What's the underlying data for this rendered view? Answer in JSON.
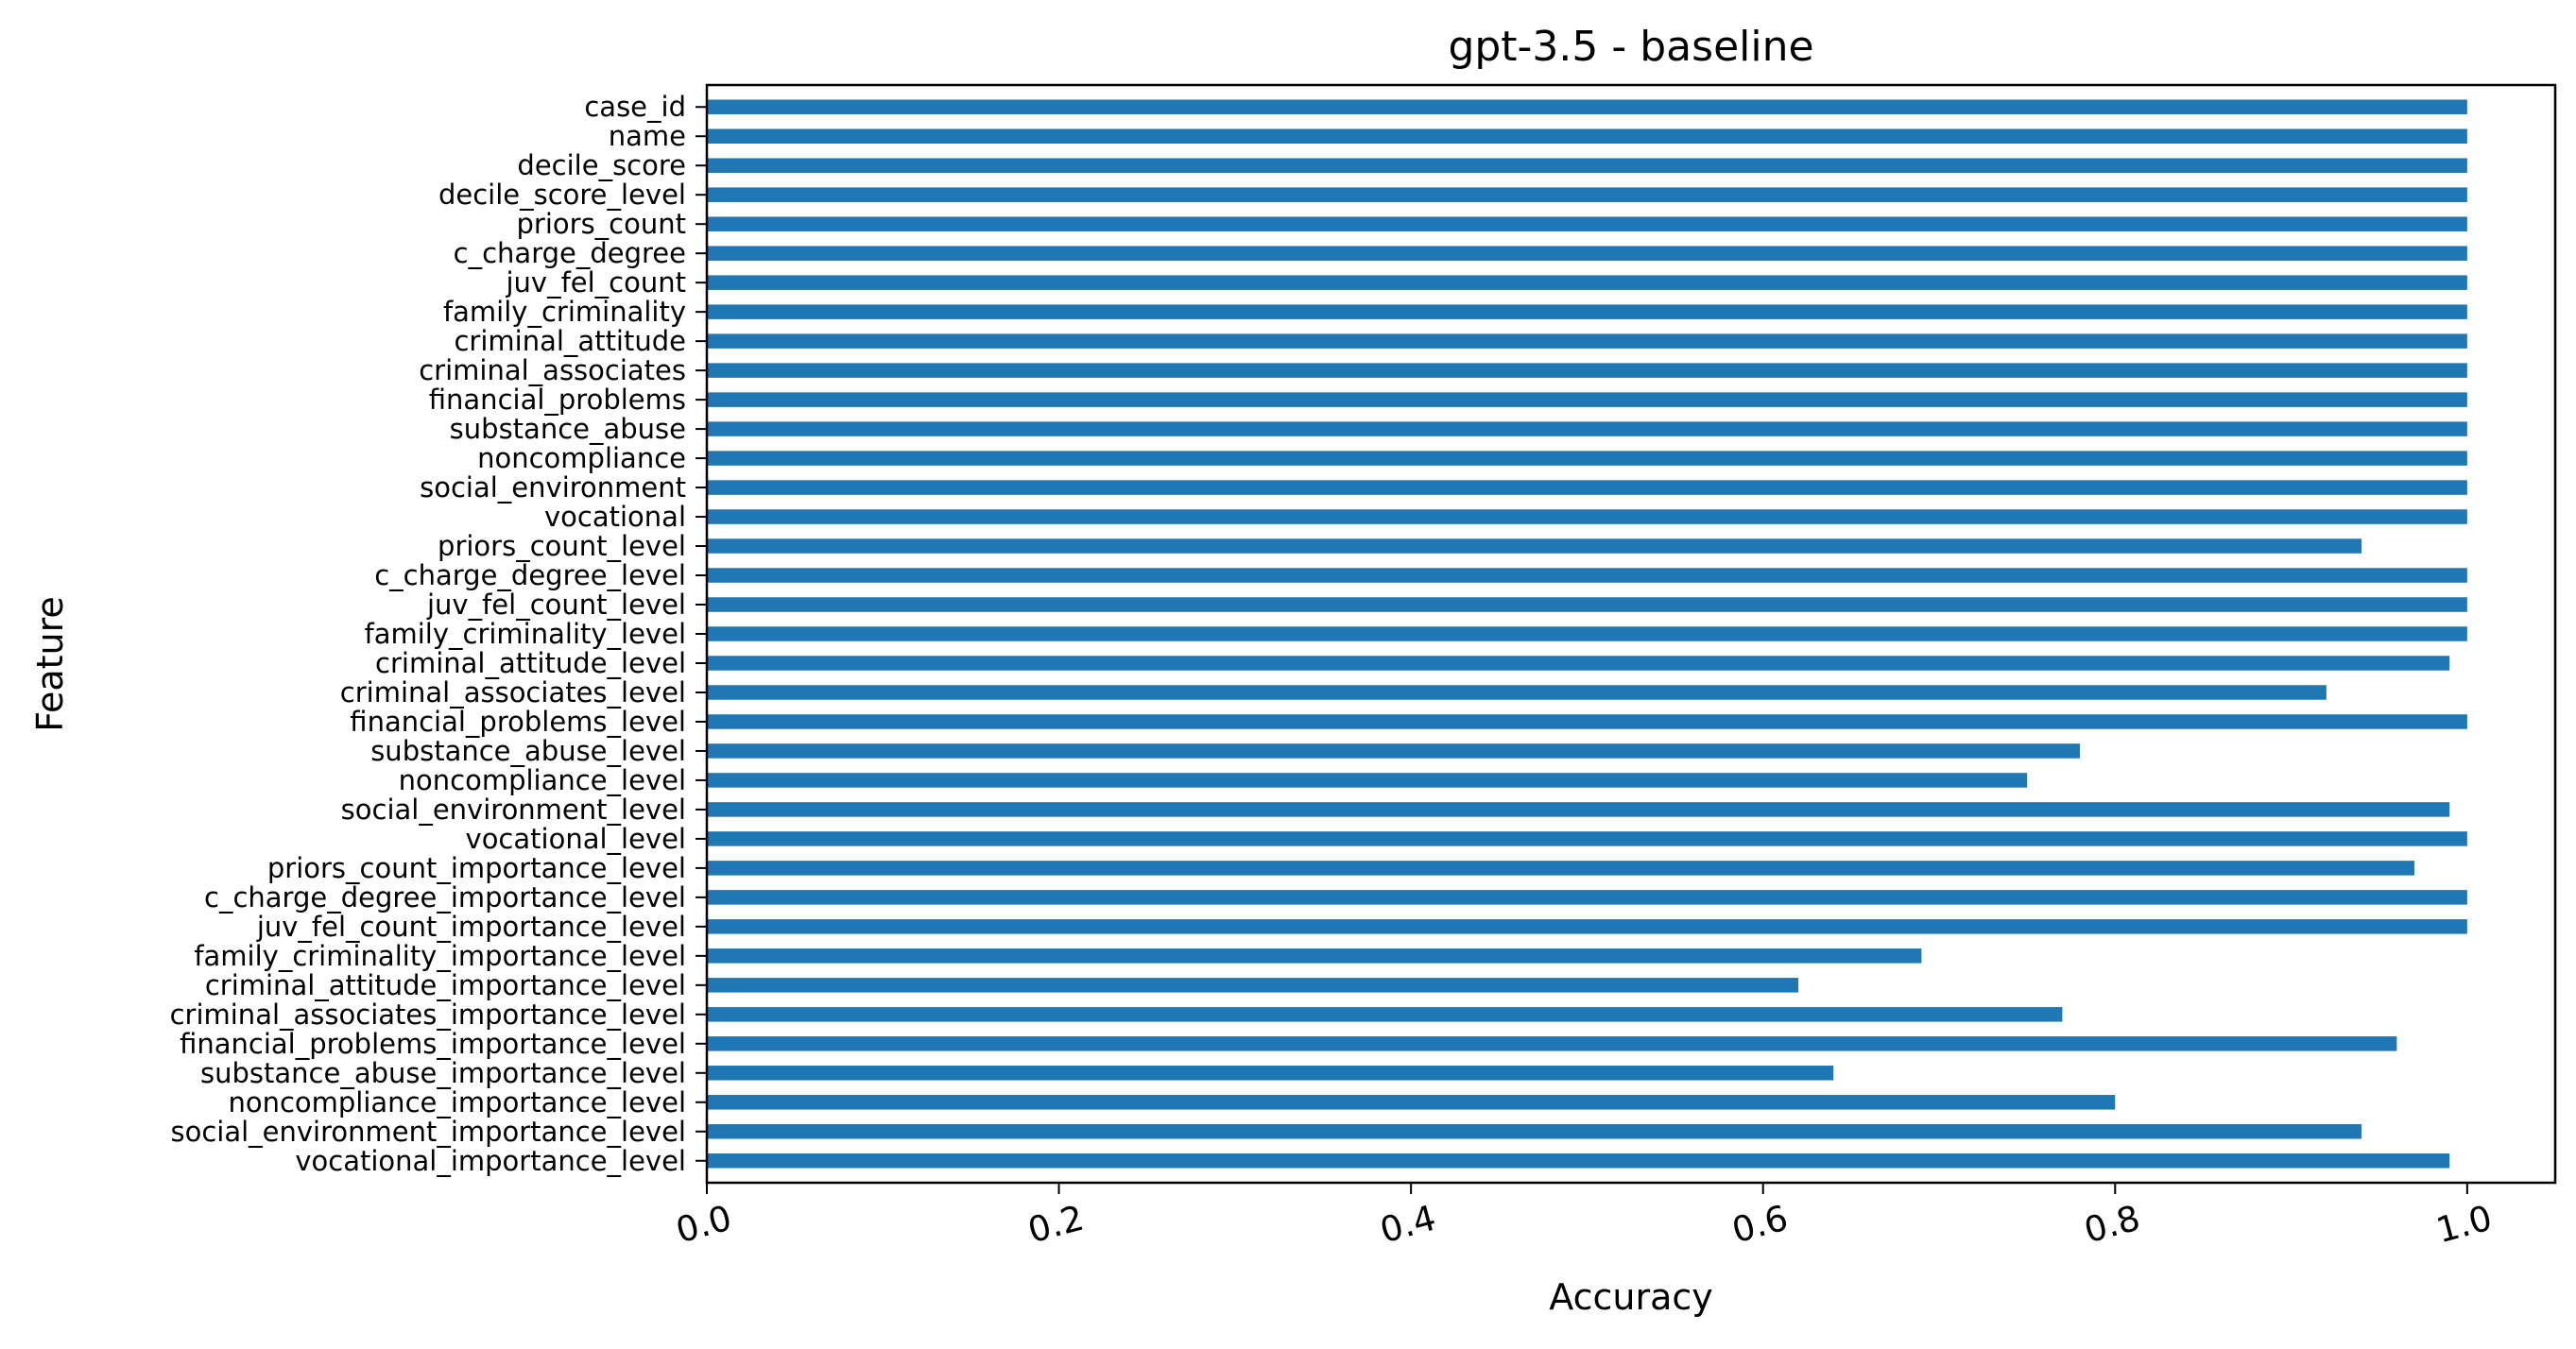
{
  "chart_data": {
    "type": "bar",
    "orientation": "horizontal",
    "title": "gpt-3.5 - baseline",
    "xlabel": "Accuracy",
    "ylabel": "Feature",
    "xlim": [
      0.0,
      1.05
    ],
    "xticks": [
      0.0,
      0.2,
      0.4,
      0.6,
      0.8,
      1.0
    ],
    "xtick_labels": [
      "0.0",
      "0.2",
      "0.4",
      "0.6",
      "0.8",
      "1.0"
    ],
    "grid": false,
    "legend": "none",
    "bar_color": "#1f77b4",
    "categories": [
      "case_id",
      "name",
      "decile_score",
      "decile_score_level",
      "priors_count",
      "c_charge_degree",
      "juv_fel_count",
      "family_criminality",
      "criminal_attitude",
      "criminal_associates",
      "financial_problems",
      "substance_abuse",
      "noncompliance",
      "social_environment",
      "vocational",
      "priors_count_level",
      "c_charge_degree_level",
      "juv_fel_count_level",
      "family_criminality_level",
      "criminal_attitude_level",
      "criminal_associates_level",
      "financial_problems_level",
      "substance_abuse_level",
      "noncompliance_level",
      "social_environment_level",
      "vocational_level",
      "priors_count_importance_level",
      "c_charge_degree_importance_level",
      "juv_fel_count_importance_level",
      "family_criminality_importance_level",
      "criminal_attitude_importance_level",
      "criminal_associates_importance_level",
      "financial_problems_importance_level",
      "substance_abuse_importance_level",
      "noncompliance_importance_level",
      "social_environment_importance_level",
      "vocational_importance_level"
    ],
    "values": [
      1.0,
      1.0,
      1.0,
      1.0,
      1.0,
      1.0,
      1.0,
      1.0,
      1.0,
      1.0,
      1.0,
      1.0,
      1.0,
      1.0,
      1.0,
      0.94,
      1.0,
      1.0,
      1.0,
      0.99,
      0.92,
      1.0,
      0.78,
      0.75,
      0.99,
      1.0,
      0.97,
      1.0,
      1.0,
      0.69,
      0.62,
      0.77,
      0.96,
      0.64,
      0.8,
      0.94,
      0.99
    ]
  }
}
